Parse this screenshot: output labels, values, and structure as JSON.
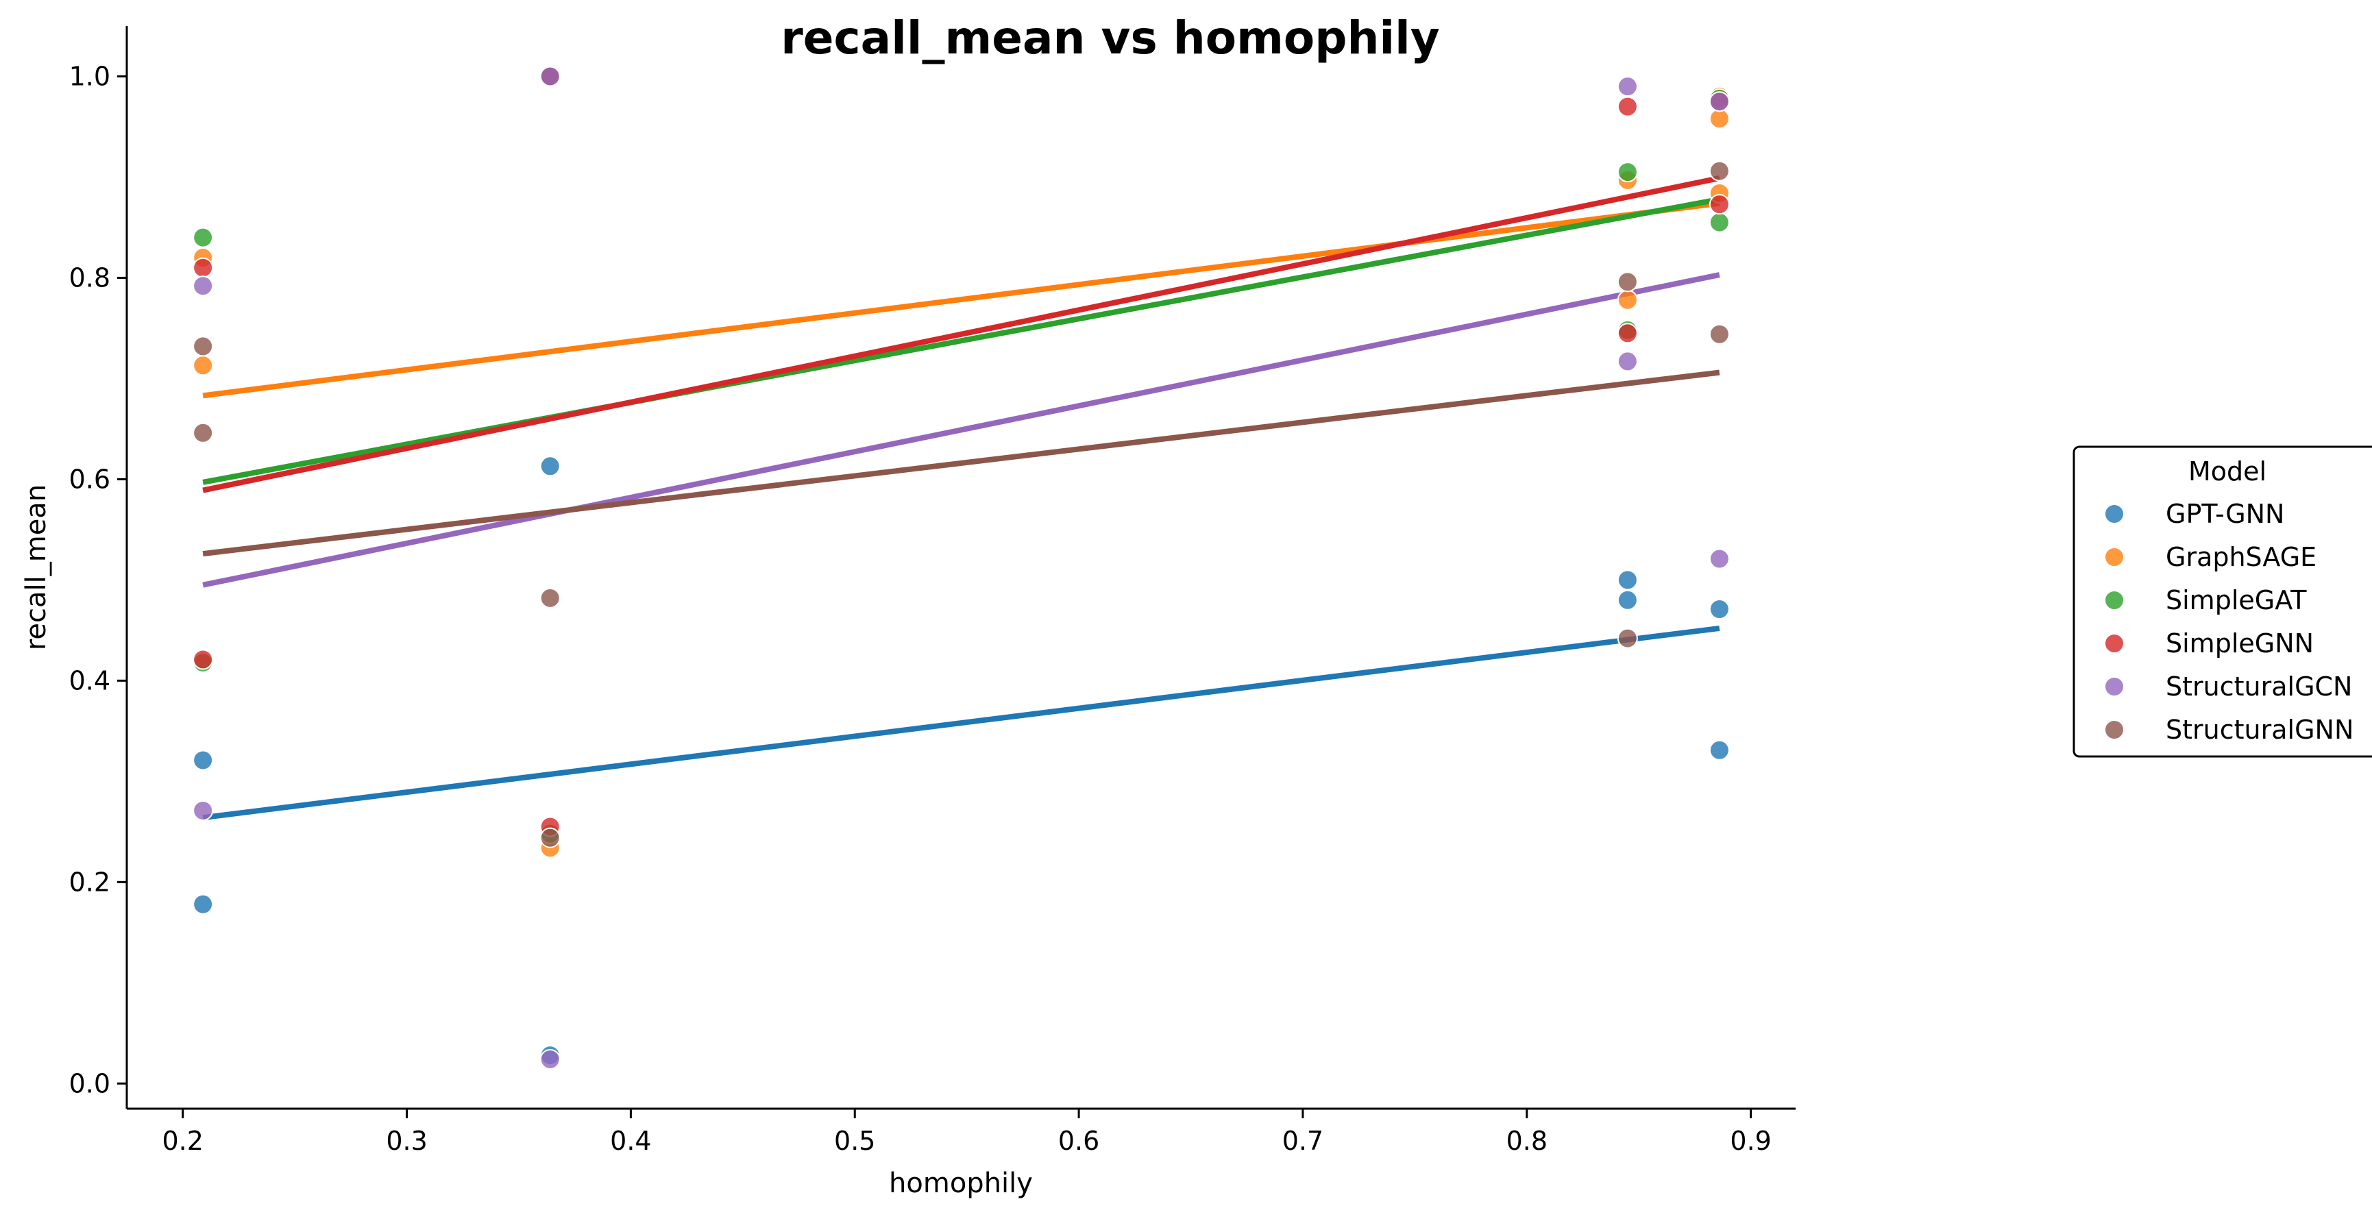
{
  "chart_data": {
    "type": "scatter",
    "title": "recall_mean vs homophily",
    "xlabel": "homophily",
    "ylabel": "recall_mean",
    "xlim": [
      0.175,
      0.92
    ],
    "ylim": [
      -0.025,
      1.05
    ],
    "xticks": [
      0.2,
      0.3,
      0.4,
      0.5,
      0.6,
      0.7,
      0.8,
      0.9
    ],
    "xtick_labels": [
      "0.2",
      "0.3",
      "0.4",
      "0.5",
      "0.6",
      "0.7",
      "0.8",
      "0.9"
    ],
    "yticks": [
      0.0,
      0.2,
      0.4,
      0.6,
      0.8,
      1.0
    ],
    "ytick_labels": [
      "0.0",
      "0.2",
      "0.4",
      "0.6",
      "0.8",
      "1.0"
    ],
    "legend_title": "Model",
    "legend_position": "right",
    "series": [
      {
        "name": "GPT-GNN",
        "color": "#1f77b4",
        "points": [
          [
            0.209,
            0.178
          ],
          [
            0.209,
            0.321
          ],
          [
            0.364,
            0.613
          ],
          [
            0.364,
            0.028
          ],
          [
            0.845,
            0.48
          ],
          [
            0.845,
            0.5
          ],
          [
            0.886,
            0.471
          ],
          [
            0.886,
            0.331
          ]
        ],
        "trend": [
          [
            0.209,
            0.264
          ],
          [
            0.886,
            0.452
          ]
        ]
      },
      {
        "name": "GraphSAGE",
        "color": "#ff7f0e",
        "points": [
          [
            0.209,
            0.82
          ],
          [
            0.209,
            0.713
          ],
          [
            0.364,
            0.234
          ],
          [
            0.845,
            0.897
          ],
          [
            0.845,
            0.778
          ],
          [
            0.886,
            0.98
          ],
          [
            0.886,
            0.958
          ],
          [
            0.886,
            0.884
          ]
        ],
        "trend": [
          [
            0.209,
            0.683
          ],
          [
            0.886,
            0.874
          ]
        ]
      },
      {
        "name": "SimpleGAT",
        "color": "#2ca02c",
        "points": [
          [
            0.209,
            0.84
          ],
          [
            0.209,
            0.418
          ],
          [
            0.364,
            1.0
          ],
          [
            0.364,
            0.248
          ],
          [
            0.845,
            0.905
          ],
          [
            0.845,
            0.748
          ],
          [
            0.886,
            0.855
          ],
          [
            0.886,
            0.978
          ]
        ],
        "trend": [
          [
            0.209,
            0.597
          ],
          [
            0.886,
            0.878
          ]
        ]
      },
      {
        "name": "SimpleGNN",
        "color": "#d62728",
        "points": [
          [
            0.209,
            0.81
          ],
          [
            0.209,
            0.421
          ],
          [
            0.364,
            0.255
          ],
          [
            0.364,
            1.0
          ],
          [
            0.845,
            0.97
          ],
          [
            0.845,
            0.745
          ],
          [
            0.886,
            0.873
          ],
          [
            0.886,
            0.975
          ]
        ],
        "trend": [
          [
            0.209,
            0.589
          ],
          [
            0.886,
            0.899
          ]
        ]
      },
      {
        "name": "StructuralGCN",
        "color": "#9467bd",
        "points": [
          [
            0.209,
            0.792
          ],
          [
            0.209,
            0.271
          ],
          [
            0.364,
            1.0
          ],
          [
            0.364,
            0.024
          ],
          [
            0.845,
            0.99
          ],
          [
            0.845,
            0.717
          ],
          [
            0.886,
            0.975
          ],
          [
            0.886,
            0.521
          ]
        ],
        "trend": [
          [
            0.209,
            0.495
          ],
          [
            0.886,
            0.803
          ]
        ]
      },
      {
        "name": "StructuralGNN",
        "color": "#8c564b",
        "points": [
          [
            0.209,
            0.732
          ],
          [
            0.209,
            0.646
          ],
          [
            0.364,
            0.482
          ],
          [
            0.364,
            0.244
          ],
          [
            0.845,
            0.796
          ],
          [
            0.845,
            0.442
          ],
          [
            0.886,
            0.906
          ],
          [
            0.886,
            0.744
          ]
        ],
        "trend": [
          [
            0.209,
            0.526
          ],
          [
            0.886,
            0.706
          ]
        ]
      }
    ]
  }
}
